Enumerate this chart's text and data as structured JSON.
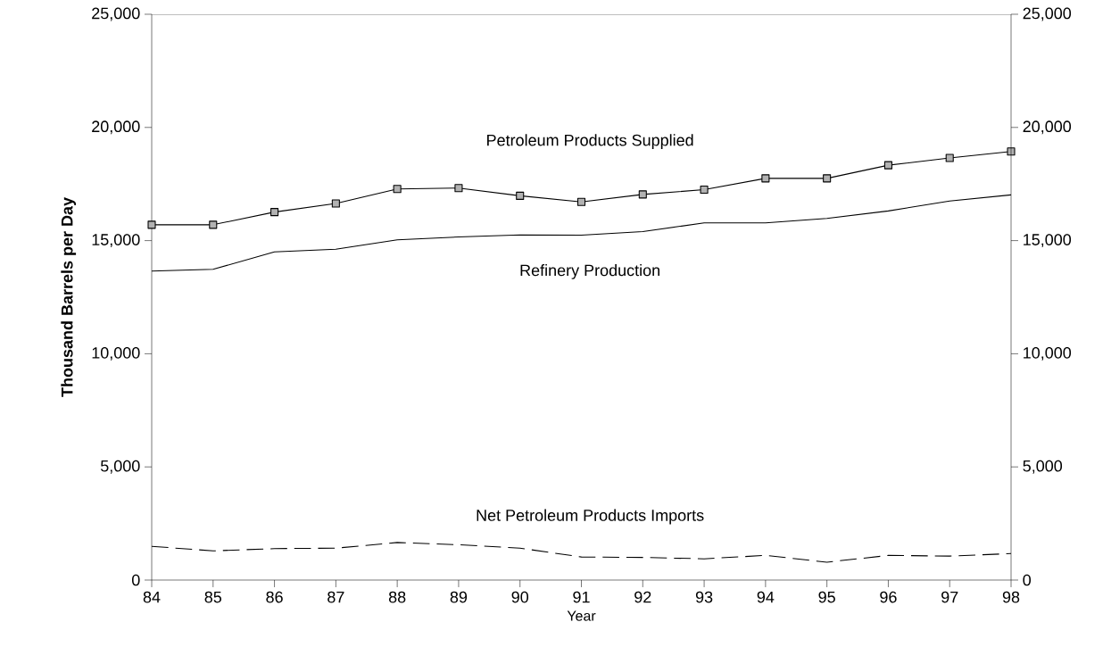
{
  "chart_data": {
    "type": "line",
    "xlabel": "Year",
    "ylabel": "Thousand Barrels per Day",
    "x": [
      84,
      85,
      86,
      87,
      88,
      89,
      90,
      91,
      92,
      93,
      94,
      95,
      96,
      97,
      98
    ],
    "series": [
      {
        "name": "Petroleum Products Supplied",
        "color": "#000000",
        "marker": "square",
        "line_style": "solid",
        "values": [
          15700,
          15700,
          16260,
          16640,
          17280,
          17320,
          16980,
          16710,
          17040,
          17250,
          17750,
          17750,
          18330,
          18650,
          18940
        ]
      },
      {
        "name": "Refinery Production",
        "color": "#000000",
        "line_style": "solid",
        "values": [
          13650,
          13730,
          14500,
          14620,
          15030,
          15160,
          15250,
          15240,
          15400,
          15780,
          15780,
          15980,
          16310,
          16750,
          17020
        ]
      },
      {
        "name": "Net Petroleum Products Imports",
        "color": "#000000",
        "line_style": "dashed",
        "values": [
          1490,
          1290,
          1390,
          1410,
          1660,
          1560,
          1410,
          1020,
          1000,
          940,
          1090,
          790,
          1090,
          1060,
          1170
        ]
      }
    ],
    "xlim": [
      84,
      98
    ],
    "xticks": [
      84,
      85,
      86,
      87,
      88,
      89,
      90,
      91,
      92,
      93,
      94,
      95,
      96,
      97,
      98
    ],
    "ylim": [
      0,
      25000
    ],
    "yticks": [
      {
        "value": 0,
        "label": "0"
      },
      {
        "value": 5000,
        "label": "5,000"
      },
      {
        "value": 10000,
        "label": "10,000"
      },
      {
        "value": 15000,
        "label": "15,000"
      },
      {
        "value": 20000,
        "label": "20,000"
      },
      {
        "value": 25000,
        "label": "25,000"
      }
    ],
    "y2lim": [
      0,
      25000
    ],
    "y2ticks": [
      {
        "value": 0,
        "label": "0"
      },
      {
        "value": 5000,
        "label": "5,000"
      },
      {
        "value": 10000,
        "label": "10,000"
      },
      {
        "value": 15000,
        "label": "15,000"
      },
      {
        "value": 20000,
        "label": "20,000"
      },
      {
        "value": 25000,
        "label": "25,000"
      }
    ],
    "grid": false,
    "legend": false
  }
}
